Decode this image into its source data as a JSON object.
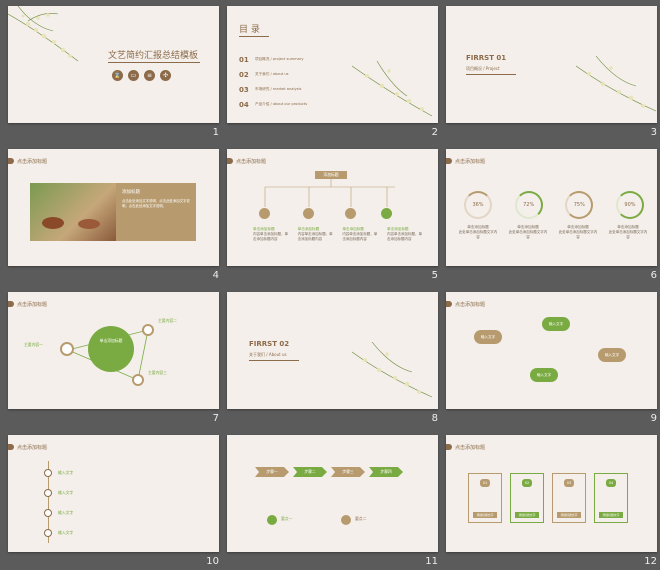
{
  "colors": {
    "background": "#5b5b5b",
    "slide": "#f4efea",
    "brown": "#8c6b4a",
    "green": "#7aaa42",
    "gold": "#b79b6e"
  },
  "slides": [
    {
      "number": "1",
      "title": "文艺简约汇报总结模板",
      "subtitle": "",
      "icons": [
        "hourglass-icon",
        "book-icon",
        "document-icon",
        "puzzle-icon"
      ]
    },
    {
      "number": "2",
      "heading": "目 录",
      "items": [
        {
          "n": "01",
          "text": "项目概况 / project summary"
        },
        {
          "n": "02",
          "text": "关于我们 / about us"
        },
        {
          "n": "03",
          "text": "市场研究 / market analysis"
        },
        {
          "n": "04",
          "text": "产品介绍 / about our products"
        }
      ]
    },
    {
      "number": "3",
      "part": "FIRRST 01",
      "sub": "项目概况 / Project"
    },
    {
      "number": "4",
      "header": "点击添加标题",
      "box_title": "添加标题",
      "box_text": "点击此处添加文字说明，点击此处添加文字说明，点击此处添加文字说明。"
    },
    {
      "number": "5",
      "header": "点击添加标题",
      "top": "添加标题",
      "items": [
        "单击添加标题",
        "单击添加标题",
        "单击添加标题",
        "单击添加标题"
      ],
      "text": "内容单击添加标题，单击添加标题内容"
    },
    {
      "number": "6",
      "header": "点击添加标题",
      "percents": [
        "36%",
        "72%",
        "75%",
        "90%"
      ],
      "label": "单击添加标题",
      "text": "此处单击添加标题文字内容"
    },
    {
      "number": "7",
      "header": "点击添加标题",
      "center": "单击添加标题",
      "nodes": [
        "主要内容一",
        "主要内容二",
        "主要内容三"
      ]
    },
    {
      "number": "8",
      "part": "FIRRST 02",
      "sub": "关于我们 / About us"
    },
    {
      "number": "9",
      "header": "点击添加标题",
      "clouds": [
        "输入文字",
        "输入文字",
        "输入文字",
        "输入文字"
      ]
    },
    {
      "number": "10",
      "header": "点击添加标题",
      "items": [
        "输入文字",
        "输入文字",
        "输入文字",
        "输入文字"
      ]
    },
    {
      "number": "11",
      "steps": [
        "步骤一",
        "步骤二",
        "步骤三",
        "步骤四"
      ],
      "pointA": "要点一",
      "pointB": "要点二"
    },
    {
      "number": "12",
      "header": "点击添加标题",
      "cards": [
        "01",
        "02",
        "03",
        "04"
      ],
      "button": "添加标题文字"
    }
  ]
}
